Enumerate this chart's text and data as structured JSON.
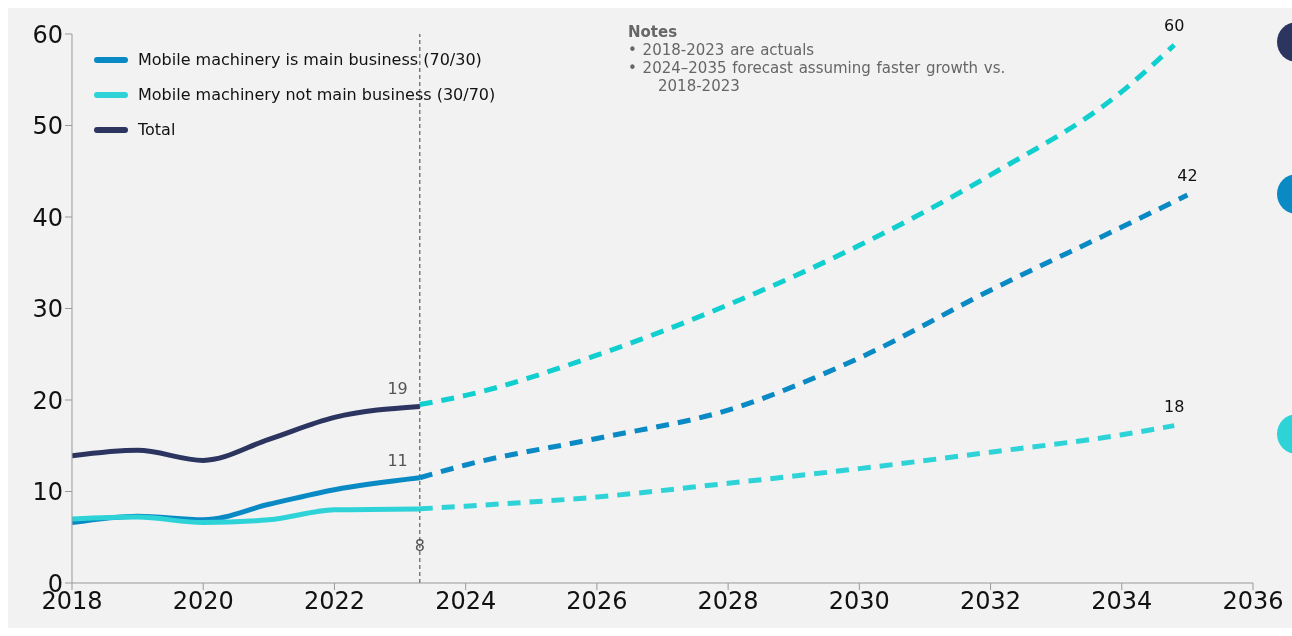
{
  "chart_data": {
    "type": "line",
    "xlim": [
      2018,
      2036
    ],
    "xticks": [
      2018,
      2020,
      2022,
      2024,
      2026,
      2028,
      2030,
      2032,
      2034,
      2036
    ],
    "ylim": [
      0,
      60
    ],
    "yticks": [
      0,
      10,
      20,
      30,
      40,
      50,
      60
    ],
    "legend": "top left",
    "marker": "none",
    "series": [
      {
        "name": "Mobile machinery is main business (70/30)",
        "color": "#0a8ac4",
        "line_style": "solid",
        "x": [
          2018,
          2019,
          2020,
          2021,
          2022,
          2023.3
        ],
        "values": [
          6.6,
          7.3,
          6.9,
          8.6,
          10.2,
          11.5
        ]
      },
      {
        "name": "Mobile machinery not main business (30/70)",
        "color": "#2ed3d8",
        "line_style": "solid",
        "x": [
          2018,
          2019,
          2020,
          2021,
          2022,
          2023.3
        ],
        "values": [
          7.0,
          7.2,
          6.6,
          6.9,
          8.0,
          8.1
        ]
      },
      {
        "name": "Total",
        "color": "#2c3560",
        "line_style": "solid",
        "x": [
          2018,
          2019,
          2020,
          2021,
          2022,
          2023.3
        ],
        "values": [
          13.9,
          14.5,
          13.4,
          15.7,
          18.1,
          19.3
        ]
      },
      {
        "color": "#12cfcf",
        "line_style": "dashed",
        "x": [
          2023.3,
          2024,
          2026,
          2028,
          2030,
          2032,
          2034,
          2034.8
        ],
        "values": [
          19.5,
          20.5,
          24.9,
          30.4,
          36.9,
          44.6,
          53.7,
          58.8
        ]
      },
      {
        "color": "#0a8ac4",
        "line_style": "dashed",
        "x": [
          2023.3,
          2024,
          2026,
          2028,
          2030,
          2032,
          2034,
          2035
        ],
        "values": [
          11.5,
          12.9,
          15.8,
          18.9,
          24.6,
          32.0,
          38.9,
          42.4
        ]
      },
      {
        "color": "#2ed3d8",
        "line_style": "dashed",
        "x": [
          2023.3,
          2024,
          2026,
          2028,
          2030,
          2032,
          2034,
          2034.8
        ],
        "values": [
          8.1,
          8.4,
          9.4,
          10.9,
          12.5,
          14.3,
          16.2,
          17.2
        ]
      }
    ],
    "ref_lines": [
      {
        "axis": "x",
        "value": 2023.3,
        "color": "#7a7a8c",
        "line_style": "dashed"
      }
    ],
    "annotations": [
      "Notes",
      "• 2018-2023 are actuals",
      "• 2024–2035 forecast assuming faster growth vs. 2018-2023",
      {
        "text": "19",
        "x": 2023.3,
        "y": 19.3
      },
      {
        "text": "11",
        "x": 2023.3,
        "y": 11.5
      },
      {
        "text": "8",
        "x": 2023.3,
        "y": 8.1
      },
      {
        "text": "60",
        "x": 2034.8,
        "y": 58.8
      },
      {
        "text": "42",
        "x": 2035,
        "y": 42.4
      },
      {
        "text": "18",
        "x": 2034.8,
        "y": 17.2
      }
    ]
  }
}
